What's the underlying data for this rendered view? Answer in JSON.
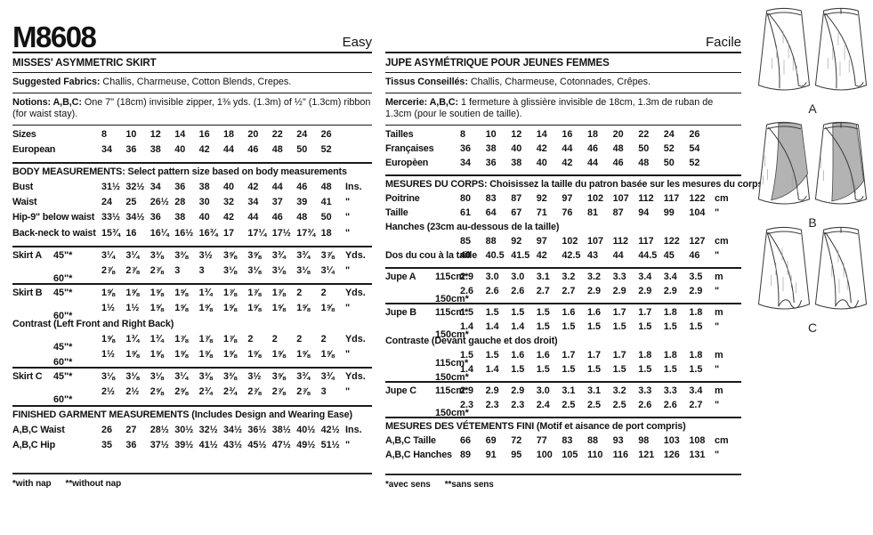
{
  "header": {
    "pattern_number": "M8608",
    "difficulty_en": "Easy",
    "difficulty_fr": "Facile"
  },
  "colors": {
    "ink": "#1a1a1a",
    "contrast_gray": "#b3b3b3",
    "paper": "#ffffff"
  },
  "english": {
    "title": "MISSES' ASYMMETRIC SKIRT",
    "fabrics": {
      "label": "Suggested Fabrics:",
      "text": "Challis, Charmeuse, Cotton Blends, Crepes."
    },
    "notions": {
      "label": "Notions: A,B,C:",
      "text": "One 7\" (18cm) invisible zipper, 1⅜ yds. (1.3m) of ½\" (1.3cm) ribbon (for waist stay)."
    },
    "table": [
      {
        "t": "row",
        "label": "Sizes",
        "values": [
          "8",
          "10",
          "12",
          "14",
          "16",
          "18",
          "20",
          "22",
          "24",
          "26"
        ],
        "unit": ""
      },
      {
        "t": "row",
        "label": "European",
        "values": [
          "34",
          "36",
          "38",
          "40",
          "42",
          "44",
          "46",
          "48",
          "50",
          "52"
        ],
        "unit": ""
      },
      {
        "t": "rule"
      },
      {
        "t": "header",
        "text": "BODY MEASUREMENTS: Select pattern size based on body measurements"
      },
      {
        "t": "row",
        "label": "Bust",
        "values": [
          "31½",
          "32½",
          "34",
          "36",
          "38",
          "40",
          "42",
          "44",
          "46",
          "48"
        ],
        "unit": "Ins."
      },
      {
        "t": "row",
        "label": "Waist",
        "values": [
          "24",
          "25",
          "26½",
          "28",
          "30",
          "32",
          "34",
          "37",
          "39",
          "41"
        ],
        "unit": "\""
      },
      {
        "t": "row",
        "label": "Hip-9\" below waist",
        "values": [
          "33½",
          "34½",
          "36",
          "38",
          "40",
          "42",
          "44",
          "46",
          "48",
          "50"
        ],
        "unit": "\""
      },
      {
        "t": "row",
        "label": "Back-neck to waist",
        "values": [
          "15¾",
          "16",
          "16¼",
          "16½",
          "16¾",
          "17",
          "17¼",
          "17½",
          "17¾",
          "18"
        ],
        "unit": "\""
      },
      {
        "t": "rule"
      },
      {
        "t": "row",
        "label": "Skirt A",
        "sub": "45\"*",
        "values": [
          "3¼",
          "3¼",
          "3⅜",
          "3⅜",
          "3½",
          "3⅝",
          "3⅝",
          "3¾",
          "3¾",
          "3⅞"
        ],
        "unit": "Yds."
      },
      {
        "t": "row",
        "sub": "60\"*",
        "values": [
          "2⅞",
          "2⅞",
          "2⅞",
          "3",
          "3",
          "3⅛",
          "3⅛",
          "3⅛",
          "3⅛",
          "3¼"
        ],
        "unit": "\""
      },
      {
        "t": "rule"
      },
      {
        "t": "row",
        "label": "Skirt B",
        "sub": "45\"*",
        "values": [
          "1⅝",
          "1⅝",
          "1⅝",
          "1⅝",
          "1¾",
          "1⅞",
          "1⅞",
          "1⅞",
          "2",
          "2"
        ],
        "unit": "Yds."
      },
      {
        "t": "row",
        "sub": "60\"*",
        "values": [
          "1½",
          "1½",
          "1⅝",
          "1⅝",
          "1⅝",
          "1⅝",
          "1⅝",
          "1⅝",
          "1⅝",
          "1⅝"
        ],
        "unit": "\""
      },
      {
        "t": "header",
        "text": "Contrast (Left Front and Right Back)"
      },
      {
        "t": "row",
        "sub": "45\"*",
        "values": [
          "1⅝",
          "1¾",
          "1¾",
          "1⅞",
          "1⅞",
          "1⅞",
          "2",
          "2",
          "2",
          "2"
        ],
        "unit": "Yds."
      },
      {
        "t": "row",
        "sub": "60\"*",
        "values": [
          "1½",
          "1⅝",
          "1⅝",
          "1⅝",
          "1⅝",
          "1⅝",
          "1⅝",
          "1⅝",
          "1⅝",
          "1⅝"
        ],
        "unit": "\""
      },
      {
        "t": "rule"
      },
      {
        "t": "row",
        "label": "Skirt C",
        "sub": "45\"*",
        "values": [
          "3⅛",
          "3⅛",
          "3⅛",
          "3¼",
          "3⅜",
          "3⅜",
          "3½",
          "3⅝",
          "3¾",
          "3¾"
        ],
        "unit": "Yds."
      },
      {
        "t": "row",
        "sub": "60\"*",
        "values": [
          "2½",
          "2½",
          "2⅝",
          "2⅝",
          "2¾",
          "2¾",
          "2⅞",
          "2⅞",
          "2⅞",
          "3"
        ],
        "unit": "\""
      },
      {
        "t": "rule"
      },
      {
        "t": "header",
        "text": "FINISHED GARMENT MEASUREMENTS (Includes Design and Wearing Ease)"
      },
      {
        "t": "row",
        "label": "A,B,C Waist",
        "values": [
          "26",
          "27",
          "28½",
          "30½",
          "32½",
          "34½",
          "36½",
          "38½",
          "40½",
          "42½"
        ],
        "unit": "Ins."
      },
      {
        "t": "row",
        "label": "A,B,C Hip",
        "values": [
          "35",
          "36",
          "37½",
          "39½",
          "41½",
          "43½",
          "45½",
          "47½",
          "49½",
          "51½"
        ],
        "unit": "\""
      }
    ],
    "footnote": [
      "*with nap",
      "**without nap"
    ]
  },
  "french": {
    "title": "JUPE ASYMÉTRIQUE POUR JEUNES FEMMES",
    "fabrics": {
      "label": "Tissus Conseillés:",
      "text": "Challis, Charmeuse, Cotonnades, Crêpes."
    },
    "notions": {
      "label": "Mercerie: A,B,C:",
      "text": "1 fermeture à glissière invisible de 18cm, 1.3m de ruban de 1.3cm (pour le soutien de taille)."
    },
    "table": [
      {
        "t": "row",
        "label": "Tailles",
        "values": [
          "8",
          "10",
          "12",
          "14",
          "16",
          "18",
          "20",
          "22",
          "24",
          "26"
        ],
        "unit": ""
      },
      {
        "t": "row",
        "label": "Françaises",
        "values": [
          "36",
          "38",
          "40",
          "42",
          "44",
          "46",
          "48",
          "50",
          "52",
          "54"
        ],
        "unit": ""
      },
      {
        "t": "row",
        "label": "Europèen",
        "values": [
          "34",
          "36",
          "38",
          "40",
          "42",
          "44",
          "46",
          "48",
          "50",
          "52"
        ],
        "unit": ""
      },
      {
        "t": "rule"
      },
      {
        "t": "header",
        "text": "MESURES DU CORPS: Choisissez la taille du patron basée sur les mesures du corps"
      },
      {
        "t": "row",
        "label": "Poitrine",
        "values": [
          "80",
          "83",
          "87",
          "92",
          "97",
          "102",
          "107",
          "112",
          "117",
          "122"
        ],
        "unit": "cm"
      },
      {
        "t": "row",
        "label": "Taille",
        "values": [
          "61",
          "64",
          "67",
          "71",
          "76",
          "81",
          "87",
          "94",
          "99",
          "104"
        ],
        "unit": "\""
      },
      {
        "t": "header",
        "text": "Hanches (23cm au-dessous de la taille)"
      },
      {
        "t": "row",
        "values": [
          "85",
          "88",
          "92",
          "97",
          "102",
          "107",
          "112",
          "117",
          "122",
          "127"
        ],
        "unit": "cm"
      },
      {
        "t": "row",
        "label": "Dos du cou à la taille",
        "values": [
          "40",
          "40.5",
          "41.5",
          "42",
          "42.5",
          "43",
          "44",
          "44.5",
          "45",
          "46"
        ],
        "unit": "\""
      },
      {
        "t": "rule"
      },
      {
        "t": "row",
        "label": "Jupe A",
        "sub": "115cm*",
        "values": [
          "2.9",
          "3.0",
          "3.0",
          "3.1",
          "3.2",
          "3.2",
          "3.3",
          "3.4",
          "3.4",
          "3.5"
        ],
        "unit": "m"
      },
      {
        "t": "row",
        "sub": "150cm*",
        "values": [
          "2.6",
          "2.6",
          "2.6",
          "2.7",
          "2.7",
          "2.9",
          "2.9",
          "2.9",
          "2.9",
          "2.9"
        ],
        "unit": "\""
      },
      {
        "t": "rule"
      },
      {
        "t": "row",
        "label": "Jupe B",
        "sub": "115cm*",
        "values": [
          "1.5",
          "1.5",
          "1.5",
          "1.5",
          "1.6",
          "1.6",
          "1.7",
          "1.7",
          "1.8",
          "1.8"
        ],
        "unit": "m"
      },
      {
        "t": "row",
        "sub": "150cm*",
        "values": [
          "1.4",
          "1.4",
          "1.4",
          "1.5",
          "1.5",
          "1.5",
          "1.5",
          "1.5",
          "1.5",
          "1.5"
        ],
        "unit": "\""
      },
      {
        "t": "header",
        "text": "Contraste (Devant gauche et dos droit)"
      },
      {
        "t": "row",
        "sub": "115cm*",
        "values": [
          "1.5",
          "1.5",
          "1.6",
          "1.6",
          "1.7",
          "1.7",
          "1.7",
          "1.8",
          "1.8",
          "1.8"
        ],
        "unit": "m"
      },
      {
        "t": "row",
        "sub": "150cm*",
        "values": [
          "1.4",
          "1.4",
          "1.5",
          "1.5",
          "1.5",
          "1.5",
          "1.5",
          "1.5",
          "1.5",
          "1.5"
        ],
        "unit": "\""
      },
      {
        "t": "rule"
      },
      {
        "t": "row",
        "label": "Jupe C",
        "sub": "115cm*",
        "values": [
          "2.9",
          "2.9",
          "2.9",
          "3.0",
          "3.1",
          "3.1",
          "3.2",
          "3.3",
          "3.3",
          "3.4"
        ],
        "unit": "m"
      },
      {
        "t": "row",
        "sub": "150cm*",
        "values": [
          "2.3",
          "2.3",
          "2.3",
          "2.4",
          "2.5",
          "2.5",
          "2.5",
          "2.6",
          "2.6",
          "2.7"
        ],
        "unit": "\""
      },
      {
        "t": "rule"
      },
      {
        "t": "header",
        "text": "MESURES DES VÉTEMENTS FINI (Motif et aisance de port compris)"
      },
      {
        "t": "row",
        "label": "A,B,C Taille",
        "values": [
          "66",
          "69",
          "72",
          "77",
          "83",
          "88",
          "93",
          "98",
          "103",
          "108"
        ],
        "unit": "cm"
      },
      {
        "t": "row",
        "label": "A,B,C Hanches",
        "values": [
          "89",
          "91",
          "95",
          "100",
          "105",
          "110",
          "116",
          "121",
          "126",
          "131"
        ],
        "unit": "\""
      }
    ],
    "footnote": [
      "*avec sens",
      "**sans sens"
    ]
  },
  "views": [
    {
      "label": "A"
    },
    {
      "label": "B"
    },
    {
      "label": "C"
    }
  ]
}
